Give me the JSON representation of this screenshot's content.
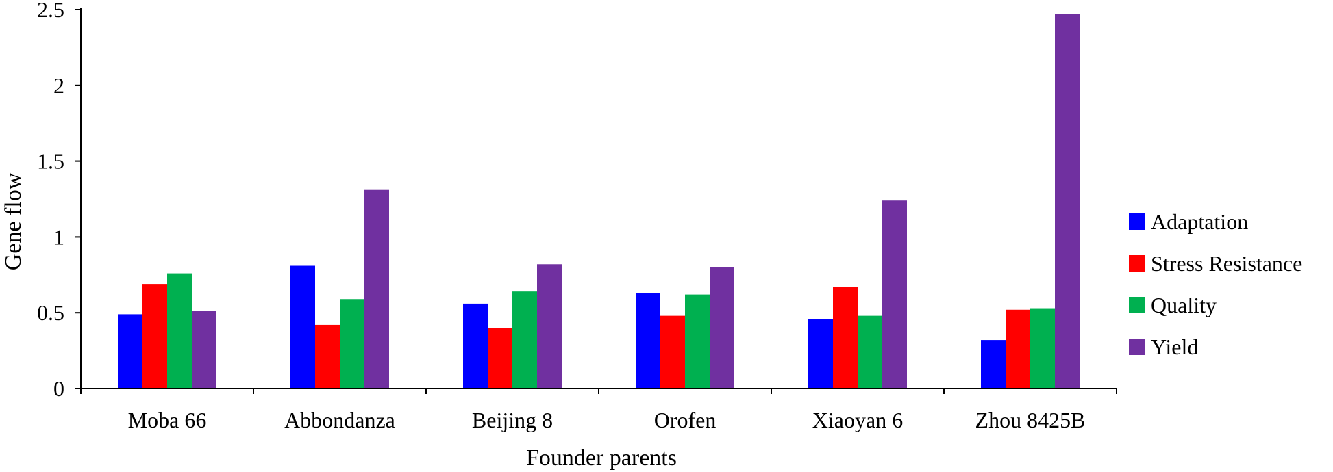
{
  "chart_data": {
    "type": "bar",
    "xlabel": "Founder parents",
    "ylabel": "Gene flow",
    "ylim": [
      0,
      2.5
    ],
    "yticks": [
      "0",
      "0.5",
      "1",
      "1.5",
      "2",
      "2.5"
    ],
    "categories": [
      "Moba 66",
      "Abbondanza",
      "Beijing 8",
      "Orofen",
      "Xiaoyan 6",
      "Zhou 8425B"
    ],
    "series": [
      {
        "name": "Adaptation",
        "color": "#0000ff",
        "values": [
          0.49,
          0.81,
          0.56,
          0.63,
          0.46,
          0.32
        ]
      },
      {
        "name": "Stress Resistance",
        "color": "#ff0000",
        "values": [
          0.69,
          0.42,
          0.4,
          0.48,
          0.67,
          0.52
        ]
      },
      {
        "name": "Quality",
        "color": "#00b050",
        "values": [
          0.76,
          0.59,
          0.64,
          0.62,
          0.48,
          0.53
        ]
      },
      {
        "name": "Yield",
        "color": "#7030a0",
        "values": [
          0.51,
          1.31,
          0.82,
          0.8,
          1.24,
          2.47
        ]
      }
    ],
    "legend": "right",
    "grid": false
  }
}
